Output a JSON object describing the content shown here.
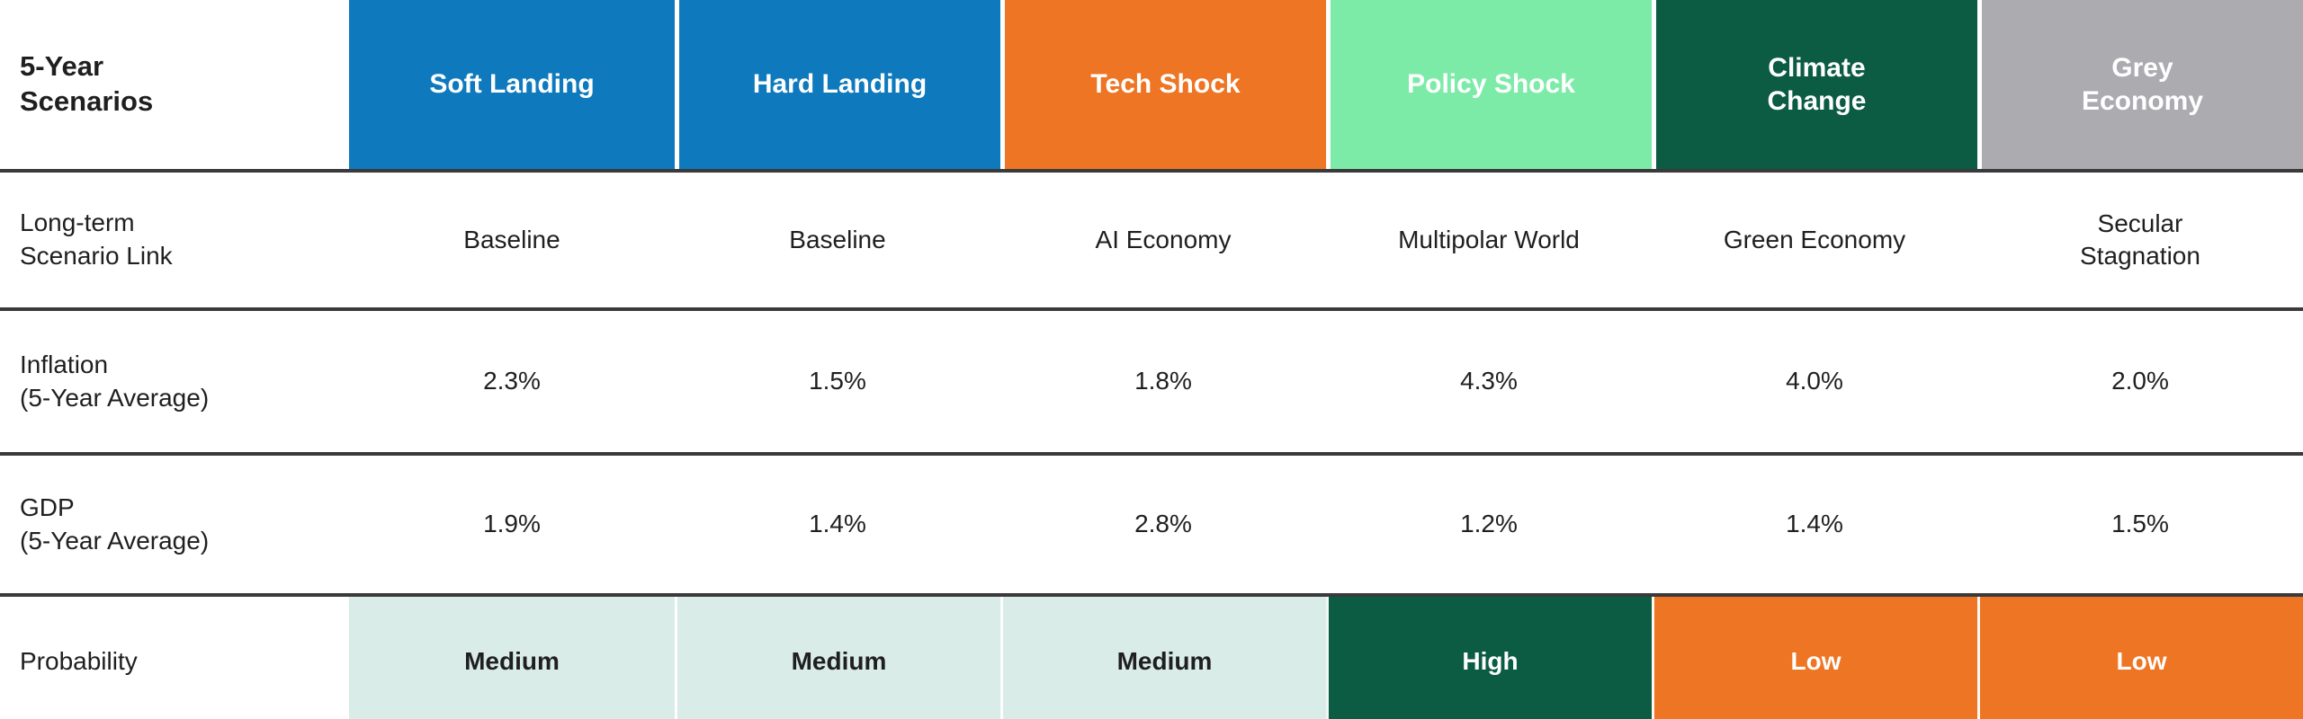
{
  "colors": {
    "blue": "#0E7ABD",
    "orange": "#EE7523",
    "mint_green": "#7DEBA8",
    "dark_green": "#0C5B43",
    "grey": "#ABABB0",
    "light_mint_cell": "#D9ECE8",
    "text_dark": "#1F1F1F",
    "divider_line": "#3A3A3A",
    "header_text": "#FFFFFF"
  },
  "header": {
    "title": "5-Year\nScenarios",
    "columns": [
      {
        "label": "Soft Landing",
        "bg": "#0E7ABD",
        "fg": "#FFFFFF"
      },
      {
        "label": "Hard Landing",
        "bg": "#0E7ABD",
        "fg": "#FFFFFF"
      },
      {
        "label": "Tech Shock",
        "bg": "#EE7523",
        "fg": "#FFFFFF"
      },
      {
        "label": "Policy Shock",
        "bg": "#7DEBA8",
        "fg": "#FFFFFF"
      },
      {
        "label": "Climate\nChange",
        "bg": "#0C5B43",
        "fg": "#FFFFFF"
      },
      {
        "label": "Grey\nEconomy",
        "bg": "#ABABB0",
        "fg": "#FFFFFF"
      }
    ]
  },
  "rows": [
    {
      "label": "Long-term\nScenario Link",
      "values": [
        "Baseline",
        "Baseline",
        "AI Economy",
        "Multipolar World",
        "Green Economy",
        "Secular\nStagnation"
      ]
    },
    {
      "label": "Inflation\n(5-Year Average)",
      "values": [
        "2.3%",
        "1.5%",
        "1.8%",
        "4.3%",
        "4.0%",
        "2.0%"
      ]
    },
    {
      "label": "GDP\n(5-Year Average)",
      "values": [
        "1.9%",
        "1.4%",
        "2.8%",
        "1.2%",
        "1.4%",
        "1.5%"
      ]
    }
  ],
  "probability_row": {
    "label": "Probability",
    "cells": [
      {
        "label": "Medium",
        "bg": "#D9ECE8",
        "fg": "#1F1F1F"
      },
      {
        "label": "Medium",
        "bg": "#D9ECE8",
        "fg": "#1F1F1F"
      },
      {
        "label": "Medium",
        "bg": "#D9ECE8",
        "fg": "#1F1F1F"
      },
      {
        "label": "High",
        "bg": "#0C5B43",
        "fg": "#FFFFFF"
      },
      {
        "label": "Low",
        "bg": "#EE7523",
        "fg": "#FFFFFF"
      },
      {
        "label": "Low",
        "bg": "#EE7523",
        "fg": "#FFFFFF"
      }
    ]
  }
}
